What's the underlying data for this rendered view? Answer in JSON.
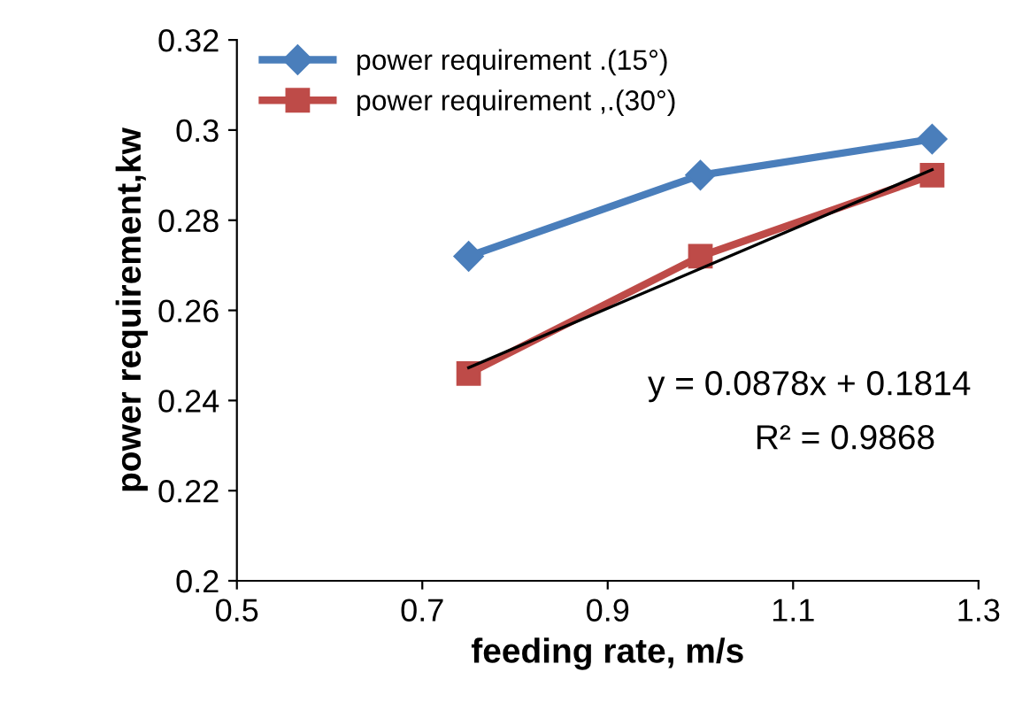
{
  "chart_data": {
    "type": "line",
    "xlabel": "feeding rate, m/s",
    "ylabel": "power requirement,kw",
    "xlim": [
      0.5,
      1.3
    ],
    "xticks": [
      0.5,
      0.7,
      0.9,
      1.1,
      1.3
    ],
    "ylim": [
      0.2,
      0.32
    ],
    "yticks": [
      0.2,
      0.22,
      0.24,
      0.26,
      0.28,
      0.3,
      0.32
    ],
    "grid": false,
    "legend": "top left",
    "line_style": "solid",
    "series": [
      {
        "name": "power requirement .(15°)",
        "color": "#4a7ebb",
        "marker": "diamond",
        "x": [
          0.75,
          1.0,
          1.25
        ],
        "values": [
          0.272,
          0.29,
          0.298
        ]
      },
      {
        "name": "power requirement ,.(30°)",
        "color": "#be4b48",
        "marker": "square",
        "x": [
          0.75,
          1.0,
          1.25
        ],
        "values": [
          0.246,
          0.272,
          0.29
        ]
      },
      {
        "color": "#000000",
        "marker": "none",
        "x": [
          0.75,
          1.25
        ],
        "values": [
          0.2473,
          0.2912
        ]
      }
    ],
    "annotations": [
      "y = 0.0878x + 0.1814",
      "R² = 0.9868"
    ]
  }
}
